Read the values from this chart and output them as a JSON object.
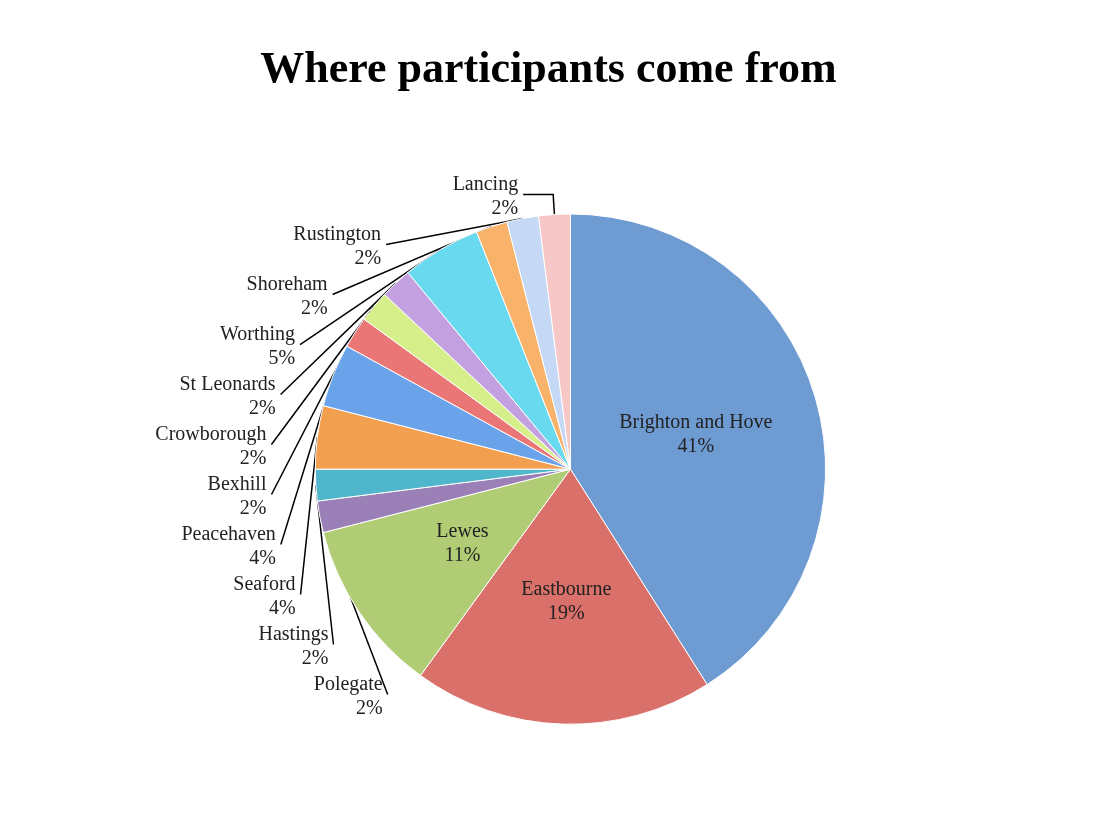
{
  "chart_data": {
    "type": "pie",
    "title": "Where participants come from",
    "categories": [
      "Brighton and Hove",
      "Eastbourne",
      "Lewes",
      "Polegate",
      "Hastings",
      "Seaford",
      "Peacehaven",
      "Bexhill",
      "Crowborough",
      "St Leonards",
      "Worthing",
      "Shoreham",
      "Rustington",
      "Lancing"
    ],
    "values": [
      41,
      19,
      11,
      2,
      2,
      4,
      4,
      2,
      2,
      2,
      5,
      2,
      2,
      2
    ],
    "colors": [
      "#6f9bd3",
      "#d9706a",
      "#b0cc74",
      "#9a80b6",
      "#4fb6cc",
      "#f2a050",
      "#6aa3ea",
      "#ea7676",
      "#d6ef8a",
      "#c3a0df",
      "#68d9ee",
      "#f8b26a",
      "#c5d8f5",
      "#f7c6c6"
    ],
    "value_labels": [
      "41%",
      "19%",
      "11%",
      "2%",
      "2%",
      "4%",
      "4%",
      "2%",
      "2%",
      "2%",
      "5%",
      "2%",
      "2%",
      "2%"
    ],
    "legend": false
  }
}
